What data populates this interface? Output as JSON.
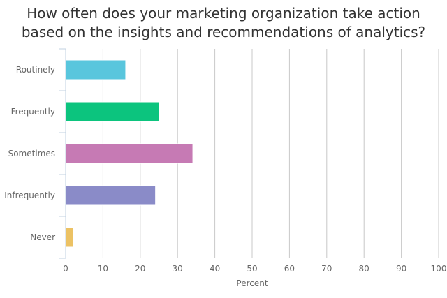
{
  "chart_data": {
    "type": "bar",
    "orientation": "horizontal",
    "title_lines": [
      "How often does your marketing organization take action",
      "based on the insights and recommendations of analytics?"
    ],
    "categories": [
      "Routinely",
      "Frequently",
      "Sometimes",
      "Infrequently",
      "Never"
    ],
    "values": [
      16,
      25,
      34,
      24,
      2
    ],
    "colors": [
      "#59c6dd",
      "#0cc47e",
      "#c67ab4",
      "#8a8bc8",
      "#ecc264"
    ],
    "xlabel": "Percent",
    "ylabel": "",
    "xlim": [
      0,
      100
    ],
    "x_ticks": [
      0,
      10,
      20,
      30,
      40,
      50,
      60,
      70,
      80,
      90,
      100
    ],
    "grid": "vertical",
    "legend": "none"
  }
}
